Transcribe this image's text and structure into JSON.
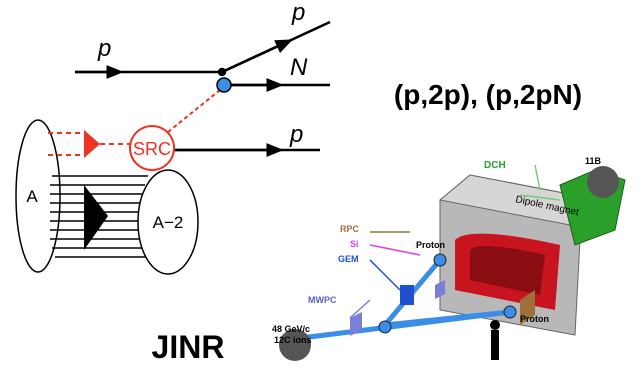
{
  "diagram": {
    "incoming": "p",
    "outgoing_top": "p",
    "recoil": "N",
    "outgoing_bottom": "p",
    "pair": "SRC",
    "nucleus": "A",
    "residual": "A−2"
  },
  "reaction": "(p,2p), (p,2pN)",
  "lab": "JINR",
  "detector": {
    "dch": "DCH",
    "beam_target": "11B",
    "magnet": "Dipole magnet",
    "rpc": "RPC",
    "si": "Si",
    "gem": "GEM",
    "mwpc": "MWPC",
    "proton_upper": "Proton",
    "proton_lower": "Proton",
    "ions_line1": "48 GeV/c",
    "ions_line2": "12C ions"
  }
}
